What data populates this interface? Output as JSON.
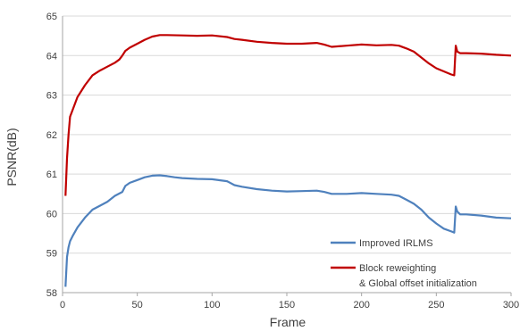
{
  "chart_data": {
    "type": "line",
    "title": "",
    "xlabel": "Frame",
    "ylabel": "PSNR(dB)",
    "xlim": [
      0,
      300
    ],
    "ylim": [
      58,
      65
    ],
    "xticks": [
      "0",
      "50",
      "100",
      "150",
      "200",
      "250",
      "300"
    ],
    "yticks": [
      "58",
      "59",
      "60",
      "61",
      "62",
      "63",
      "64",
      "65"
    ],
    "grid": "horizontal",
    "legend_position": "bottom-right",
    "series": [
      {
        "name": "Improved IRLMS",
        "color": "#4f81bd",
        "points": [
          [
            2,
            58.15
          ],
          [
            3,
            58.9
          ],
          [
            4,
            59.15
          ],
          [
            5,
            59.3
          ],
          [
            7,
            59.45
          ],
          [
            10,
            59.65
          ],
          [
            15,
            59.9
          ],
          [
            20,
            60.1
          ],
          [
            25,
            60.2
          ],
          [
            30,
            60.3
          ],
          [
            35,
            60.45
          ],
          [
            40,
            60.55
          ],
          [
            42,
            60.7
          ],
          [
            45,
            60.78
          ],
          [
            50,
            60.85
          ],
          [
            55,
            60.92
          ],
          [
            60,
            60.96
          ],
          [
            65,
            60.97
          ],
          [
            70,
            60.95
          ],
          [
            75,
            60.92
          ],
          [
            80,
            60.9
          ],
          [
            90,
            60.88
          ],
          [
            100,
            60.87
          ],
          [
            110,
            60.82
          ],
          [
            115,
            60.72
          ],
          [
            120,
            60.68
          ],
          [
            130,
            60.62
          ],
          [
            140,
            60.58
          ],
          [
            150,
            60.56
          ],
          [
            160,
            60.57
          ],
          [
            170,
            60.58
          ],
          [
            175,
            60.55
          ],
          [
            180,
            60.5
          ],
          [
            190,
            60.5
          ],
          [
            200,
            60.52
          ],
          [
            210,
            60.5
          ],
          [
            220,
            60.48
          ],
          [
            225,
            60.45
          ],
          [
            230,
            60.35
          ],
          [
            235,
            60.25
          ],
          [
            240,
            60.1
          ],
          [
            245,
            59.9
          ],
          [
            250,
            59.75
          ],
          [
            255,
            59.62
          ],
          [
            260,
            59.55
          ],
          [
            262,
            59.52
          ],
          [
            263,
            60.18
          ],
          [
            264,
            60.05
          ],
          [
            266,
            59.98
          ],
          [
            270,
            59.98
          ],
          [
            280,
            59.95
          ],
          [
            290,
            59.9
          ],
          [
            300,
            59.88
          ]
        ]
      },
      {
        "name": "Block reweighting\n& Global offset initialization",
        "color": "#c00000",
        "points": [
          [
            2,
            60.45
          ],
          [
            3,
            61.4
          ],
          [
            4,
            62.0
          ],
          [
            5,
            62.45
          ],
          [
            7,
            62.65
          ],
          [
            10,
            62.95
          ],
          [
            15,
            63.25
          ],
          [
            20,
            63.5
          ],
          [
            25,
            63.62
          ],
          [
            30,
            63.72
          ],
          [
            35,
            63.82
          ],
          [
            38,
            63.9
          ],
          [
            40,
            64.0
          ],
          [
            42,
            64.12
          ],
          [
            45,
            64.2
          ],
          [
            50,
            64.3
          ],
          [
            55,
            64.4
          ],
          [
            60,
            64.48
          ],
          [
            65,
            64.52
          ],
          [
            70,
            64.52
          ],
          [
            80,
            64.51
          ],
          [
            90,
            64.5
          ],
          [
            100,
            64.51
          ],
          [
            110,
            64.47
          ],
          [
            115,
            64.42
          ],
          [
            120,
            64.4
          ],
          [
            130,
            64.35
          ],
          [
            140,
            64.32
          ],
          [
            150,
            64.3
          ],
          [
            160,
            64.3
          ],
          [
            170,
            64.32
          ],
          [
            175,
            64.28
          ],
          [
            180,
            64.22
          ],
          [
            190,
            64.25
          ],
          [
            200,
            64.28
          ],
          [
            210,
            64.26
          ],
          [
            220,
            64.27
          ],
          [
            225,
            64.25
          ],
          [
            230,
            64.18
          ],
          [
            235,
            64.1
          ],
          [
            240,
            63.95
          ],
          [
            245,
            63.8
          ],
          [
            250,
            63.68
          ],
          [
            255,
            63.6
          ],
          [
            260,
            63.52
          ],
          [
            262,
            63.5
          ],
          [
            263,
            64.25
          ],
          [
            264,
            64.1
          ],
          [
            266,
            64.06
          ],
          [
            270,
            64.06
          ],
          [
            280,
            64.05
          ],
          [
            290,
            64.02
          ],
          [
            300,
            64.0
          ]
        ]
      }
    ]
  }
}
